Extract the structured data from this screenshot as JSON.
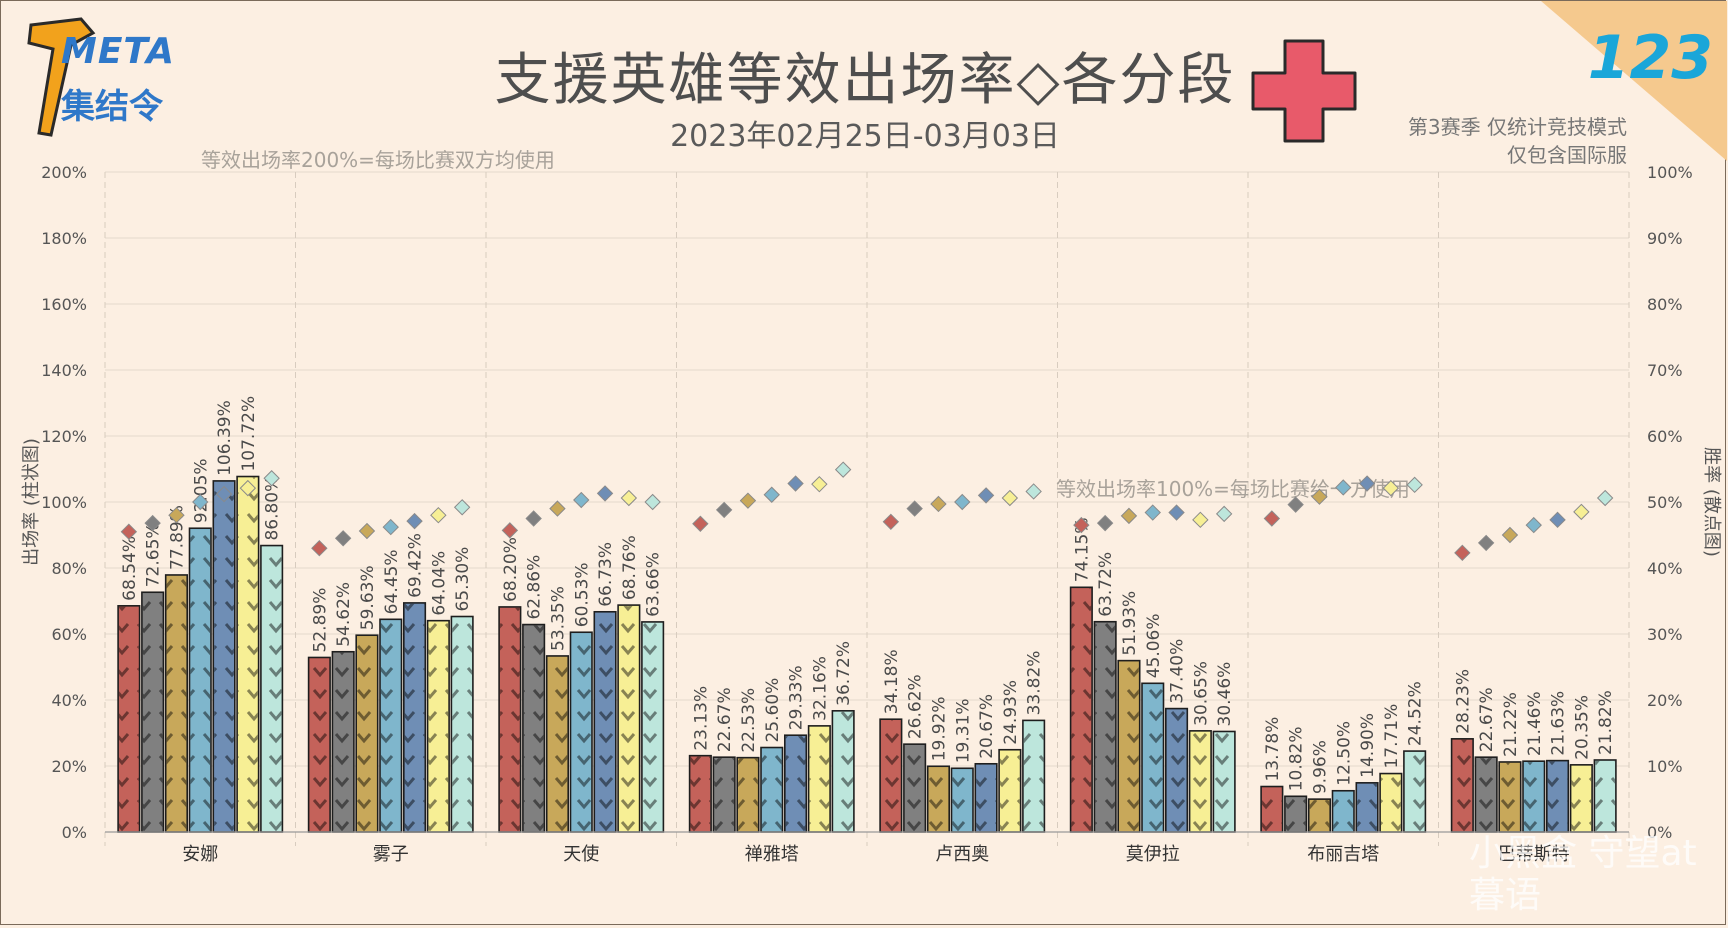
{
  "header": {
    "title": "支援英雄等效出场率◇各分段",
    "subtitle": "2023年02月25日-03月03日",
    "note_top": "等效出场率200%=每场比赛双方均使用",
    "note_mid": "等效出场率100%=每场比赛给一方使用",
    "season_line1": "第3赛季 仅统计竞技模式",
    "season_line2": "仅包含国际服",
    "logo_line1": "META",
    "logo_line2": "集结令",
    "issue_number": "123",
    "watermark": "小黑盒 守望at暮语"
  },
  "colors": {
    "background": "#fcefe2",
    "cross": "#e85a6a",
    "corner": "#f5c98e",
    "tier_colors": [
      "#c4625a",
      "#808080",
      "#c8a85a",
      "#7fb6cc",
      "#6f8eb5",
      "#f7ef95",
      "#bde6dc"
    ]
  },
  "chart_data": {
    "type": "bar",
    "categories": [
      "安娜",
      "雾子",
      "天使",
      "禅雅塔",
      "卢西奥",
      "莫伊拉",
      "布丽吉塔",
      "巴蒂斯特"
    ],
    "ylabel": "出场率 (柱状图)",
    "y2label": "胜率 (散点图)",
    "ylim": [
      0,
      200
    ],
    "y2lim": [
      0,
      100
    ],
    "yticks": [
      "0%",
      "20%",
      "40%",
      "60%",
      "80%",
      "100%",
      "120%",
      "140%",
      "160%",
      "180%",
      "200%"
    ],
    "y2ticks": [
      "0%",
      "10%",
      "20%",
      "30%",
      "40%",
      "50%",
      "60%",
      "70%",
      "80%",
      "90%",
      "100%"
    ],
    "grid": true,
    "series": [
      {
        "values": [
          68.54,
          52.89,
          68.2,
          23.13,
          34.18,
          74.15,
          13.78,
          28.23
        ],
        "labels": [
          "68.54%",
          "52.89%",
          "68.20%",
          "23.13%",
          "34.18%",
          "74.15%",
          "13.78%",
          "28.23%"
        ],
        "winrate": [
          45.5,
          43.0,
          45.7,
          46.7,
          47.0,
          46.5,
          47.5,
          42.3
        ]
      },
      {
        "values": [
          72.65,
          54.62,
          62.86,
          22.67,
          26.62,
          63.72,
          10.82,
          22.67
        ],
        "labels": [
          "72.65%",
          "54.62%",
          "62.86%",
          "22.67%",
          "26.62%",
          "63.72%",
          "10.82%",
          "22.67%"
        ],
        "winrate": [
          46.8,
          44.5,
          47.5,
          48.8,
          49.0,
          46.8,
          49.6,
          43.8
        ]
      },
      {
        "values": [
          77.89,
          59.63,
          53.35,
          22.53,
          19.92,
          51.93,
          9.96,
          21.22
        ],
        "labels": [
          "77.89%",
          "59.63%",
          "53.35%",
          "22.53%",
          "19.92%",
          "51.93%",
          "9.96%",
          "21.22%"
        ],
        "winrate": [
          48.0,
          45.6,
          49.0,
          50.2,
          49.7,
          47.9,
          50.8,
          45.0
        ]
      },
      {
        "values": [
          92.05,
          64.45,
          60.53,
          25.6,
          19.31,
          45.06,
          12.5,
          21.46
        ],
        "labels": [
          "92.05%",
          "64.45%",
          "60.53%",
          "25.60%",
          "19.31%",
          "45.06%",
          "12.50%",
          "21.46%"
        ],
        "winrate": [
          50.0,
          46.2,
          50.3,
          51.1,
          50.0,
          48.4,
          52.2,
          46.5
        ]
      },
      {
        "values": [
          106.39,
          69.42,
          66.73,
          29.33,
          20.67,
          37.4,
          14.9,
          21.63
        ],
        "labels": [
          "106.39%",
          "69.42%",
          "66.73%",
          "29.33%",
          "20.67%",
          "37.40%",
          "14.90%",
          "21.63%"
        ],
        "winrate": [
          51.2,
          47.1,
          51.3,
          52.8,
          51.0,
          48.4,
          52.8,
          47.3
        ]
      },
      {
        "values": [
          107.72,
          64.04,
          68.76,
          32.16,
          24.93,
          30.65,
          17.71,
          20.35
        ],
        "labels": [
          "107.72%",
          "64.04%",
          "68.76%",
          "32.16%",
          "24.93%",
          "30.65%",
          "17.71%",
          "20.35%"
        ],
        "winrate": [
          52.1,
          48.0,
          50.6,
          52.7,
          50.6,
          47.3,
          52.1,
          48.5
        ]
      },
      {
        "values": [
          86.8,
          65.3,
          63.66,
          36.72,
          33.82,
          30.46,
          24.52,
          21.82
        ],
        "labels": [
          "86.80%",
          "65.30%",
          "63.66%",
          "36.72%",
          "33.82%",
          "30.46%",
          "24.52%",
          "21.82%"
        ],
        "winrate": [
          53.6,
          49.2,
          50.0,
          54.9,
          51.6,
          48.2,
          52.6,
          50.6
        ]
      }
    ]
  }
}
